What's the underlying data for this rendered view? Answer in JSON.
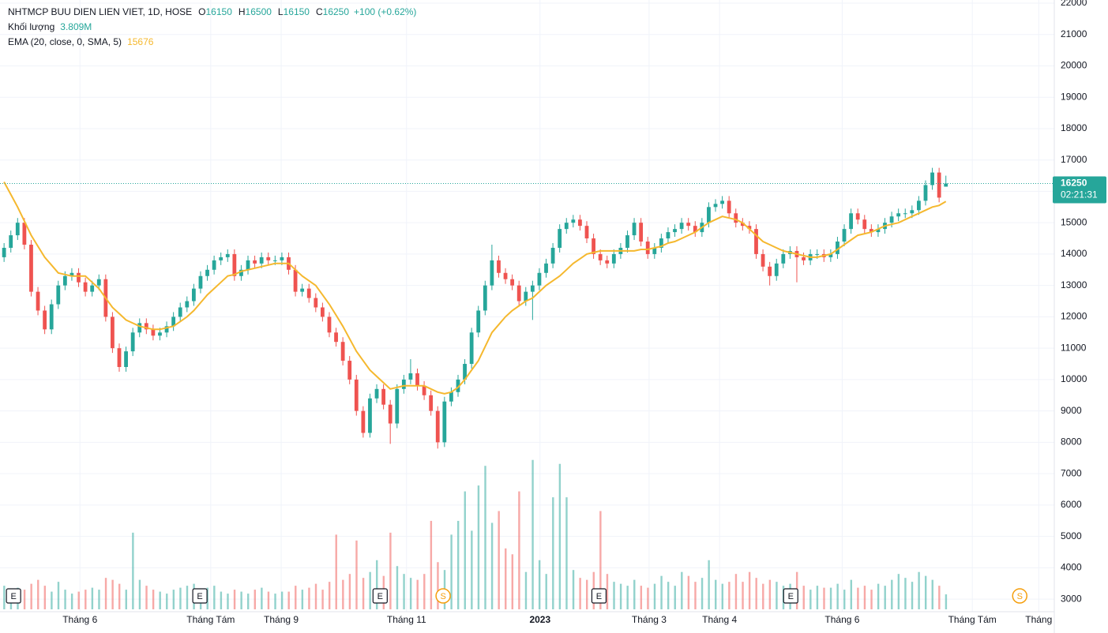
{
  "chart_data": {
    "type": "candlestick",
    "header": {
      "symbol": "NHTMCP BUU DIEN LIEN VIET, 1D, HOSE",
      "fields": [
        {
          "label": "O",
          "value": 16150
        },
        {
          "label": "H",
          "value": 16500
        },
        {
          "label": "L",
          "value": 16150
        },
        {
          "label": "C",
          "value": 16250
        }
      ],
      "change": "+100 (+0.62%)"
    },
    "volume_label": "Khối lượng",
    "volume_value": "3.809M",
    "ema_label": "EMA (20, close, 0, SMA, 5)",
    "ema_value": 15676,
    "last_price": 16250,
    "countdown": "02:21:31",
    "up_color": "#26a69a",
    "down_color": "#ef5350",
    "ema_color": "#f5b82e",
    "ylim": [
      2600,
      22100
    ],
    "yticks": [
      3000,
      4000,
      5000,
      6000,
      7000,
      8000,
      9000,
      10000,
      11000,
      12000,
      13000,
      14000,
      15000,
      16000,
      17000,
      18000,
      19000,
      20000,
      21000,
      22000
    ],
    "xlim": [
      -0.6,
      155
    ],
    "xticks": [
      {
        "value": 11.2,
        "label": "Tháng 6"
      },
      {
        "value": 30.5,
        "label": "Tháng Tám"
      },
      {
        "value": 40.9,
        "label": "Tháng 9"
      },
      {
        "value": 59.4,
        "label": "Tháng 11"
      },
      {
        "value": 79.1,
        "label": "2023"
      },
      {
        "value": 95.2,
        "label": "Tháng 3"
      },
      {
        "value": 105.6,
        "label": "Tháng 4"
      },
      {
        "value": 123.7,
        "label": "Tháng 6"
      },
      {
        "value": 142.9,
        "label": "Tháng Tám"
      },
      {
        "value": 152.7,
        "label": "Tháng"
      }
    ],
    "volume_lim": [
      0,
      155
    ],
    "grid": true,
    "events": [
      {
        "label": "E",
        "x": 1.4
      },
      {
        "label": "E",
        "x": 28.9
      },
      {
        "label": "E",
        "x": 55.5
      },
      {
        "label": "S",
        "x": 64.8
      },
      {
        "label": "E",
        "x": 87.8
      },
      {
        "label": "E",
        "x": 116.1
      },
      {
        "label": "S",
        "x": 149.9
      }
    ],
    "ohlc": [
      [
        13900,
        14350,
        13750,
        14200
      ],
      [
        14200,
        14750,
        14050,
        14600
      ],
      [
        14600,
        15150,
        14450,
        15000
      ],
      [
        15000,
        15150,
        14150,
        14300
      ],
      [
        14300,
        14450,
        12650,
        12800
      ],
      [
        12800,
        12950,
        12050,
        12200
      ],
      [
        12200,
        12350,
        11450,
        11600
      ],
      [
        11600,
        12550,
        11450,
        12400
      ],
      [
        12400,
        13150,
        12250,
        13000
      ],
      [
        13000,
        13450,
        12850,
        13300
      ],
      [
        13300,
        13550,
        13150,
        13400
      ],
      [
        13400,
        13550,
        12950,
        13100
      ],
      [
        13100,
        13250,
        12650,
        12800
      ],
      [
        12800,
        13150,
        12650,
        13000
      ],
      [
        13000,
        13350,
        12850,
        13200
      ],
      [
        13200,
        13350,
        11850,
        12000
      ],
      [
        12000,
        12150,
        10850,
        11000
      ],
      [
        11000,
        11150,
        10250,
        10400
      ],
      [
        10400,
        11050,
        10250,
        10900
      ],
      [
        10900,
        11650,
        10750,
        11500
      ],
      [
        11500,
        11950,
        11350,
        11800
      ],
      [
        11800,
        11950,
        11450,
        11600
      ],
      [
        11600,
        11750,
        11250,
        11400
      ],
      [
        11400,
        11650,
        11250,
        11500
      ],
      [
        11500,
        11850,
        11350,
        11700
      ],
      [
        11700,
        12150,
        11550,
        12000
      ],
      [
        12000,
        12450,
        11850,
        12300
      ],
      [
        12300,
        12650,
        12150,
        12500
      ],
      [
        12500,
        13050,
        12350,
        12900
      ],
      [
        12900,
        13450,
        12750,
        13300
      ],
      [
        13300,
        13650,
        13150,
        13500
      ],
      [
        13500,
        13950,
        13350,
        13800
      ],
      [
        13800,
        14050,
        13650,
        13900
      ],
      [
        13900,
        14150,
        13750,
        14000
      ],
      [
        14000,
        14150,
        13150,
        13300
      ],
      [
        13300,
        13650,
        13150,
        13500
      ],
      [
        13500,
        13950,
        13350,
        13800
      ],
      [
        13800,
        13950,
        13550,
        13700
      ],
      [
        13700,
        14050,
        13550,
        13900
      ],
      [
        13900,
        14050,
        13650,
        13800
      ],
      [
        13800,
        13950,
        13650,
        13800
      ],
      [
        13800,
        14050,
        13650,
        13900
      ],
      [
        13900,
        14050,
        13350,
        13500
      ],
      [
        13500,
        13650,
        12650,
        12800
      ],
      [
        12800,
        13050,
        12650,
        12900
      ],
      [
        12900,
        13050,
        12450,
        12600
      ],
      [
        12600,
        12750,
        12150,
        12300
      ],
      [
        12300,
        12450,
        11850,
        12000
      ],
      [
        12000,
        12150,
        11350,
        11500
      ],
      [
        11500,
        11650,
        11050,
        11200
      ],
      [
        11200,
        11350,
        10450,
        10600
      ],
      [
        10600,
        10750,
        9850,
        10000
      ],
      [
        10000,
        10150,
        8850,
        9000
      ],
      [
        9000,
        9150,
        8150,
        8300
      ],
      [
        8300,
        9550,
        8150,
        9400
      ],
      [
        9400,
        9850,
        9250,
        9700
      ],
      [
        9700,
        9850,
        9050,
        9200
      ],
      [
        9200,
        9350,
        7950,
        8600
      ],
      [
        8600,
        9850,
        8450,
        9700
      ],
      [
        9700,
        10150,
        9550,
        10000
      ],
      [
        10000,
        10650,
        9850,
        10200
      ],
      [
        10200,
        10350,
        9650,
        9800
      ],
      [
        9800,
        9950,
        9350,
        9500
      ],
      [
        9500,
        9650,
        8850,
        9000
      ],
      [
        9000,
        9150,
        7800,
        8000
      ],
      [
        8000,
        9450,
        7850,
        9300
      ],
      [
        9300,
        9750,
        9150,
        9600
      ],
      [
        9600,
        10150,
        9450,
        10000
      ],
      [
        10000,
        10650,
        9850,
        10500
      ],
      [
        10500,
        11650,
        10350,
        11500
      ],
      [
        11500,
        12350,
        11350,
        12200
      ],
      [
        12200,
        13150,
        12050,
        13000
      ],
      [
        13000,
        14300,
        12850,
        13800
      ],
      [
        13800,
        13950,
        13250,
        13400
      ],
      [
        13400,
        13550,
        13050,
        13200
      ],
      [
        13200,
        13350,
        12850,
        13000
      ],
      [
        13000,
        13150,
        12350,
        12500
      ],
      [
        12500,
        12950,
        12350,
        12800
      ],
      [
        12800,
        13150,
        11900,
        13000
      ],
      [
        13000,
        13550,
        12850,
        13400
      ],
      [
        13400,
        13850,
        13250,
        13700
      ],
      [
        13700,
        14350,
        13550,
        14200
      ],
      [
        14200,
        14950,
        14050,
        14800
      ],
      [
        14800,
        15150,
        14650,
        15000
      ],
      [
        15000,
        15250,
        14850,
        15100
      ],
      [
        15100,
        15250,
        14750,
        14900
      ],
      [
        14900,
        15050,
        14350,
        14500
      ],
      [
        14500,
        14650,
        13850,
        14000
      ],
      [
        14000,
        14150,
        13650,
        13800
      ],
      [
        13800,
        13950,
        13550,
        13700
      ],
      [
        13700,
        14150,
        13550,
        14000
      ],
      [
        14000,
        14350,
        13850,
        14200
      ],
      [
        14200,
        14750,
        14050,
        14600
      ],
      [
        14600,
        15150,
        14450,
        15000
      ],
      [
        15000,
        15150,
        14250,
        14400
      ],
      [
        14400,
        14550,
        13850,
        14000
      ],
      [
        14000,
        14350,
        13850,
        14200
      ],
      [
        14200,
        14650,
        14050,
        14500
      ],
      [
        14500,
        14850,
        14350,
        14700
      ],
      [
        14700,
        14950,
        14550,
        14800
      ],
      [
        14800,
        15150,
        14650,
        15000
      ],
      [
        15000,
        15150,
        14750,
        14900
      ],
      [
        14900,
        15050,
        14550,
        14700
      ],
      [
        14700,
        15150,
        14550,
        15000
      ],
      [
        15000,
        15650,
        14850,
        15500
      ],
      [
        15500,
        15750,
        15350,
        15600
      ],
      [
        15600,
        15850,
        15450,
        15700
      ],
      [
        15700,
        15850,
        15150,
        15300
      ],
      [
        15300,
        15450,
        14850,
        15000
      ],
      [
        15000,
        15150,
        14750,
        14900
      ],
      [
        14900,
        15050,
        14650,
        14800
      ],
      [
        14800,
        14950,
        13850,
        14000
      ],
      [
        14000,
        14150,
        13450,
        13600
      ],
      [
        13600,
        13750,
        13000,
        13300
      ],
      [
        13300,
        13850,
        13150,
        13700
      ],
      [
        13700,
        14150,
        13550,
        14000
      ],
      [
        14000,
        14250,
        13850,
        14100
      ],
      [
        14100,
        14250,
        13100,
        13900
      ],
      [
        13900,
        14050,
        13650,
        13800
      ],
      [
        13800,
        14150,
        13650,
        14000
      ],
      [
        14000,
        14150,
        13850,
        14000
      ],
      [
        14000,
        14150,
        13750,
        13900
      ],
      [
        13900,
        14150,
        13750,
        14000
      ],
      [
        14000,
        14550,
        13850,
        14400
      ],
      [
        14400,
        14950,
        14250,
        14800
      ],
      [
        14800,
        15450,
        14650,
        15300
      ],
      [
        15300,
        15450,
        14950,
        15100
      ],
      [
        15100,
        15250,
        14650,
        14800
      ],
      [
        14800,
        14950,
        14550,
        14700
      ],
      [
        14700,
        14950,
        14550,
        14800
      ],
      [
        14800,
        15150,
        14650,
        15000
      ],
      [
        15000,
        15350,
        14850,
        15200
      ],
      [
        15200,
        15450,
        15050,
        15300
      ],
      [
        15300,
        15450,
        15150,
        15300
      ],
      [
        15300,
        15550,
        15150,
        15400
      ],
      [
        15400,
        15850,
        15250,
        15700
      ],
      [
        15700,
        16350,
        15550,
        16200
      ],
      [
        16200,
        16750,
        16050,
        16600
      ],
      [
        16600,
        16750,
        15650,
        15800
      ],
      [
        16150,
        16500,
        16150,
        16250
      ]
    ],
    "volume": [
      6,
      4.5,
      5.5,
      5,
      6.5,
      7.5,
      6,
      4.5,
      7,
      5,
      4,
      4.5,
      5,
      5.5,
      5,
      8,
      7.5,
      6.5,
      5,
      19.5,
      7.5,
      6,
      5,
      4.5,
      4,
      5,
      5.5,
      6,
      6.5,
      5,
      5.5,
      6,
      4.5,
      4,
      5,
      4.5,
      4,
      5,
      5.5,
      4.5,
      4,
      4.5,
      4.5,
      6,
      5,
      5.5,
      6.5,
      5,
      7,
      19,
      7.5,
      9,
      17.5,
      8,
      9.5,
      12.5,
      8.5,
      19.5,
      11,
      9,
      8,
      7.5,
      9,
      22.5,
      12,
      10,
      19,
      22.5,
      30,
      20,
      31.5,
      36.5,
      22,
      25,
      15.5,
      14,
      30,
      9.5,
      38,
      12.5,
      9,
      28.5,
      37,
      28.5,
      10,
      8,
      7.5,
      9.5,
      25,
      9,
      7,
      6.5,
      6,
      7.5,
      6,
      5.5,
      6.5,
      8.5,
      7,
      6,
      9.5,
      8.5,
      7,
      8,
      12.5,
      7.5,
      6.5,
      7,
      9,
      7,
      9.5,
      8,
      6.5,
      7.5,
      7,
      6,
      6.5,
      9.5,
      6,
      5,
      6,
      5.5,
      5.5,
      6.5,
      5,
      7.5,
      5.5,
      6,
      5,
      6.5,
      6,
      7.5,
      9,
      8,
      7,
      9.5,
      8.5,
      7.5,
      6,
      3.809
    ],
    "ema": [
      16300,
      15900,
      15500,
      15050,
      14600,
      14250,
      13900,
      13650,
      13400,
      13350,
      13300,
      13300,
      13300,
      13100,
      12900,
      12600,
      12300,
      12100,
      11900,
      11800,
      11700,
      11650,
      11600,
      11600,
      11650,
      11700,
      11850,
      12000,
      12200,
      12450,
      12700,
      12900,
      13100,
      13300,
      13350,
      13450,
      13500,
      13550,
      13600,
      13650,
      13700,
      13700,
      13700,
      13500,
      13300,
      13150,
      13000,
      12700,
      12400,
      12050,
      11700,
      11300,
      10900,
      10600,
      10300,
      10100,
      9900,
      9700,
      9750,
      9800,
      9800,
      9800,
      9800,
      9700,
      9600,
      9550,
      9600,
      9750,
      10000,
      10300,
      10600,
      11050,
      11500,
      11750,
      12000,
      12200,
      12350,
      12500,
      12600,
      12800,
      13000,
      13150,
      13300,
      13500,
      13700,
      13850,
      14000,
      14050,
      14100,
      14100,
      14100,
      14100,
      14100,
      14100,
      14150,
      14150,
      14200,
      14250,
      14350,
      14400,
      14500,
      14600,
      14700,
      14850,
      15000,
      15100,
      15200,
      15150,
      15100,
      15000,
      14800,
      14600,
      14400,
      14300,
      14200,
      14100,
      14050,
      14000,
      13950,
      13900,
      13900,
      13950,
      14000,
      14150,
      14300,
      14450,
      14600,
      14650,
      14700,
      14800,
      14900,
      14950,
      15000,
      15100,
      15200,
      15300,
      15400,
      15500,
      15550,
      15676
    ]
  }
}
